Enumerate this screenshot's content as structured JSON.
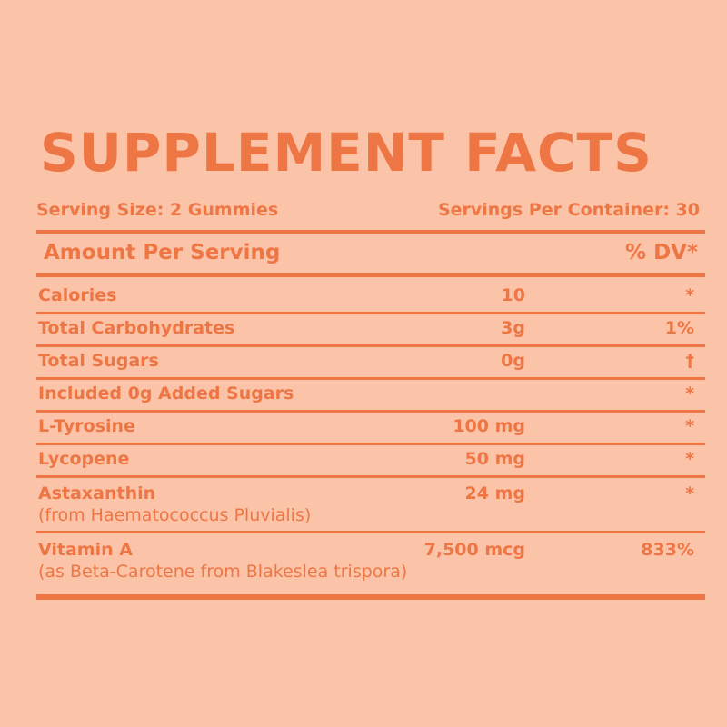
{
  "title": "SUPPLEMENT FACTS",
  "serving_size": "Serving Size: 2 Gummies",
  "servings_per_container": "Servings Per Container: 30",
  "amount_header": "Amount Per Serving",
  "dv_header": "% DV*",
  "colors": {
    "background": "#fbc3a7",
    "text": "#ee7644"
  },
  "rows": [
    {
      "name": "Calories",
      "amount": "10",
      "dv": "*"
    },
    {
      "name": "Total Carbohydrates",
      "amount": "3g",
      "dv": "1%"
    },
    {
      "name": "Total Sugars",
      "amount": "0g",
      "dv": "†"
    },
    {
      "name": "Included 0g Added Sugars",
      "amount": "",
      "dv": "*"
    },
    {
      "name": "L-Tyrosine",
      "amount": "100 mg",
      "dv": "*"
    },
    {
      "name": "Lycopene",
      "amount": "50 mg",
      "dv": "*"
    },
    {
      "name": "Astaxanthin",
      "sub": "(from Haematococcus Pluvialis)",
      "amount": "24 mg",
      "dv": "*"
    },
    {
      "name": "Vitamin A",
      "sub": "(as Beta-Carotene from Blakeslea trispora)",
      "amount": "7,500 mcg",
      "dv": "833%"
    }
  ]
}
